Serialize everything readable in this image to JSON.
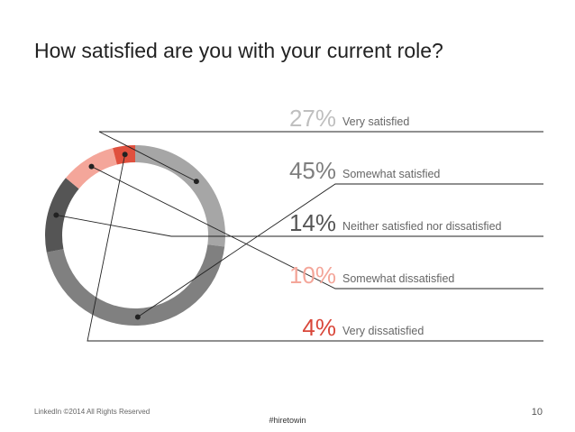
{
  "slide": {
    "title": "How satisfied are you with your current role?",
    "footer_left": "LinkedIn ©2014 All Rights Reserved",
    "hashtag": "#hiretowin",
    "page_number": "10"
  },
  "chart_data": {
    "type": "pie",
    "donut": true,
    "title": "How satisfied are you with your current role?",
    "legend": "right",
    "series": [
      {
        "label": "Very satisfied",
        "value": 27,
        "display": "27%",
        "color": "#a6a6a6",
        "text_color": "#bfbfbf"
      },
      {
        "label": "Somewhat satisfied",
        "value": 45,
        "display": "45%",
        "color": "#808080",
        "text_color": "#7f7f7f"
      },
      {
        "label": "Neither satisfied nor dissatisfied",
        "value": 14,
        "display": "14%",
        "color": "#555555",
        "text_color": "#555555"
      },
      {
        "label": "Somewhat dissatisfied",
        "value": 10,
        "display": "10%",
        "color": "#f4a69a",
        "text_color": "#f4a69a"
      },
      {
        "label": "Very dissatisfied",
        "value": 4,
        "display": "4%",
        "color": "#e0503e",
        "text_color": "#d9473a"
      }
    ]
  }
}
